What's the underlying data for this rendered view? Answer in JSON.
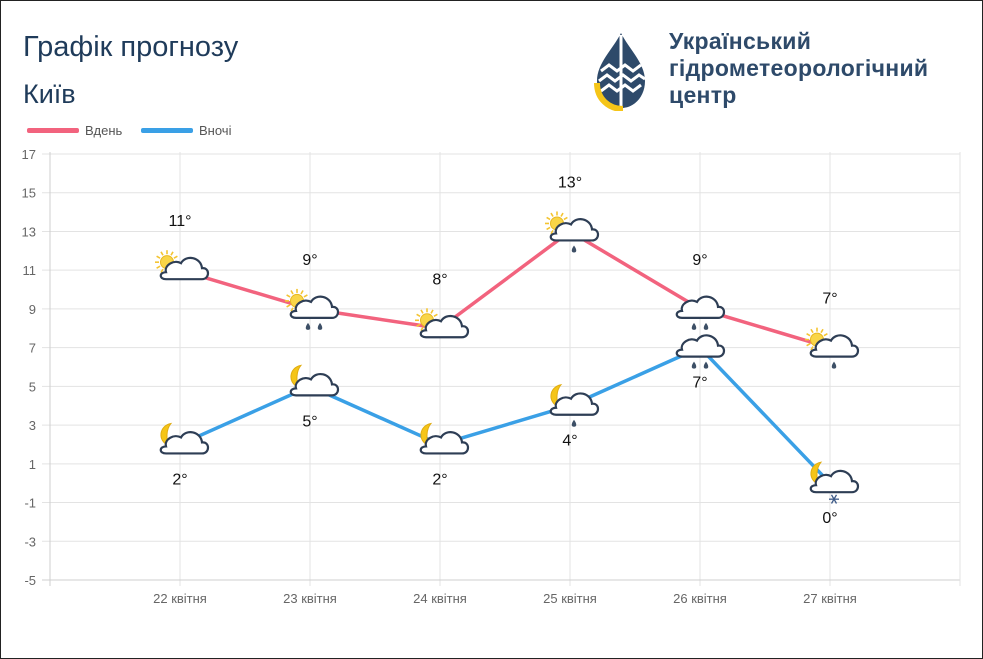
{
  "header": {
    "title": "Графік прогнозу",
    "city": "Київ",
    "org_line1": "Український",
    "org_line2": "гідрометеорологічний",
    "org_line3": "центр"
  },
  "legend": {
    "day_label": "Вдень",
    "night_label": "Вночі"
  },
  "chart_data": {
    "type": "line",
    "categories": [
      "22 квітня",
      "23 квітня",
      "24 квітня",
      "25 квітня",
      "26 квітня",
      "27 квітня"
    ],
    "series": [
      {
        "name": "Вдень",
        "color": "#f2637e",
        "values": [
          11,
          9,
          8,
          13,
          9,
          7
        ],
        "labels": [
          "11°",
          "9°",
          "8°",
          "13°",
          "9°",
          "7°"
        ],
        "icons": [
          "sun-cloud",
          "sun-cloud-rain",
          "sun-cloud",
          "sun-cloud-rain",
          "cloud-rain",
          "sun-cloud-rain"
        ]
      },
      {
        "name": "Вночі",
        "color": "#3aa0e6",
        "values": [
          2,
          5,
          2,
          4,
          7,
          0
        ],
        "labels": [
          "2°",
          "5°",
          "2°",
          "4°",
          "7°",
          "0°"
        ],
        "icons": [
          "moon-cloud",
          "moon-cloud",
          "moon-cloud",
          "moon-cloud-rain",
          "cloud-rain",
          "moon-cloud-snow"
        ]
      }
    ],
    "yticks": [
      17,
      15,
      13,
      11,
      9,
      7,
      5,
      3,
      1,
      -1,
      -3,
      -5
    ],
    "ylim": [
      -5,
      17
    ],
    "xlabel": "",
    "ylabel": "",
    "grid": true,
    "legend_position": "top-left"
  }
}
